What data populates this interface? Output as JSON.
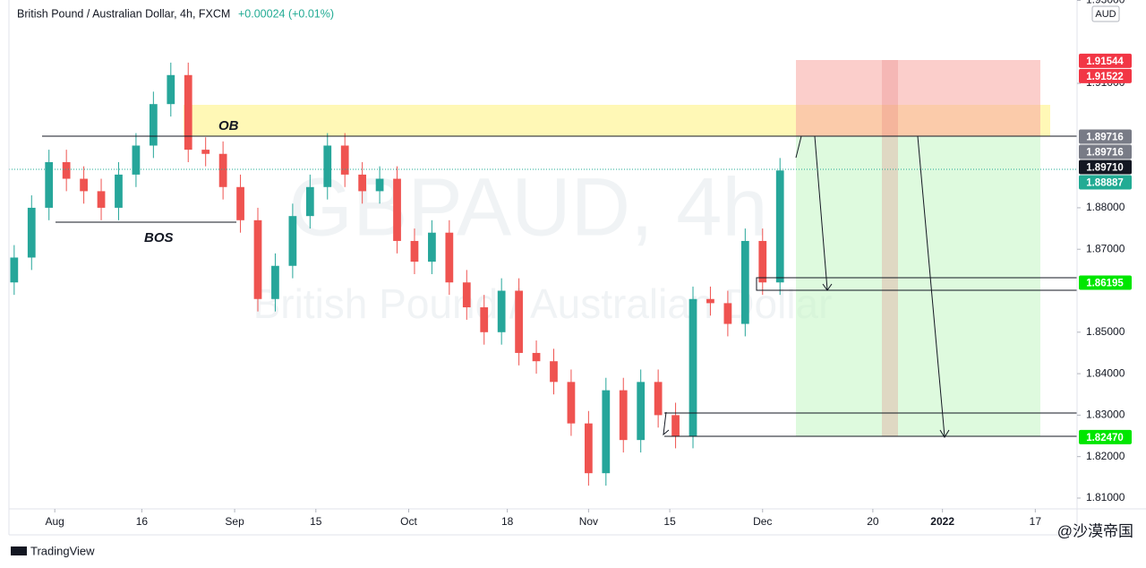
{
  "chart_data": {
    "type": "candlestick",
    "title": "British Pound / Australian Dollar, 4h, FXCM",
    "change": "+0.00024 (+0.01%)",
    "watermark": "GBPAUD, 4h",
    "watermark_subtitle": "British Pound / Australian Dollar",
    "currency": "AUD",
    "annotations": [
      "OB",
      "BOS"
    ],
    "branding": "TradingView",
    "credit": "@沙漠帝国",
    "up_color": "#26a69a",
    "down_color": "#ef5350",
    "x": [
      -7,
      -4,
      -1,
      2,
      5,
      8,
      11,
      14,
      17,
      20,
      23,
      26,
      29,
      32,
      35,
      38,
      41,
      44,
      47,
      50,
      53,
      56,
      59,
      62,
      65,
      68,
      71,
      74,
      77,
      80,
      83,
      86,
      89,
      92,
      95,
      98,
      101,
      104,
      107,
      110,
      113,
      116,
      119,
      122,
      125
    ],
    "open": [
      1.862,
      1.868,
      1.88,
      1.891,
      1.887,
      1.884,
      1.88,
      1.888,
      1.895,
      1.905,
      1.912,
      1.894,
      1.893,
      1.885,
      1.877,
      1.858,
      1.866,
      1.878,
      1.885,
      1.895,
      1.888,
      1.884,
      1.887,
      1.872,
      1.867,
      1.874,
      1.862,
      1.856,
      1.85,
      1.86,
      1.845,
      1.843,
      1.838,
      1.828,
      1.816,
      1.836,
      1.824,
      1.838,
      1.83,
      1.825,
      1.858,
      1.857,
      1.852,
      1.872,
      1.862
    ],
    "high": [
      1.871,
      1.883,
      1.894,
      1.894,
      1.89,
      1.887,
      1.891,
      1.898,
      1.908,
      1.915,
      1.915,
      1.897,
      1.896,
      1.888,
      1.88,
      1.869,
      1.881,
      1.888,
      1.898,
      1.898,
      1.891,
      1.89,
      1.89,
      1.875,
      1.877,
      1.877,
      1.865,
      1.859,
      1.863,
      1.863,
      1.848,
      1.846,
      1.841,
      1.831,
      1.839,
      1.839,
      1.841,
      1.841,
      1.833,
      1.861,
      1.861,
      1.86,
      1.875,
      1.875,
      1.892
    ],
    "low": [
      1.859,
      1.865,
      1.877,
      1.884,
      1.881,
      1.877,
      1.877,
      1.885,
      1.892,
      1.902,
      1.891,
      1.89,
      1.882,
      1.874,
      1.855,
      1.855,
      1.863,
      1.875,
      1.882,
      1.885,
      1.881,
      1.881,
      1.869,
      1.864,
      1.864,
      1.859,
      1.853,
      1.847,
      1.847,
      1.842,
      1.84,
      1.835,
      1.825,
      1.813,
      1.813,
      1.821,
      1.821,
      1.827,
      1.822,
      1.822,
      1.854,
      1.849,
      1.849,
      1.859,
      1.859
    ],
    "close": [
      1.868,
      1.88,
      1.891,
      1.887,
      1.884,
      1.88,
      1.888,
      1.895,
      1.905,
      1.912,
      1.894,
      1.893,
      1.885,
      1.877,
      1.858,
      1.866,
      1.878,
      1.885,
      1.895,
      1.888,
      1.884,
      1.887,
      1.872,
      1.867,
      1.874,
      1.862,
      1.856,
      1.85,
      1.86,
      1.845,
      1.843,
      1.838,
      1.828,
      1.816,
      1.836,
      1.824,
      1.838,
      1.83,
      1.825,
      1.858,
      1.857,
      1.852,
      1.872,
      1.862,
      1.889
    ],
    "xlim": [
      -7.9,
      176.2
    ],
    "ylim": [
      1.8074,
      1.9301
    ],
    "xticks": [
      {
        "value": 0,
        "label": "Aug"
      },
      {
        "value": 15,
        "label": "16"
      },
      {
        "value": 31,
        "label": "Sep"
      },
      {
        "value": 45,
        "label": "15"
      },
      {
        "value": 61,
        "label": "Oct"
      },
      {
        "value": 78,
        "label": "18"
      },
      {
        "value": 92,
        "label": "Nov"
      },
      {
        "value": 106,
        "label": "15"
      },
      {
        "value": 122,
        "label": "Dec"
      },
      {
        "value": 141,
        "label": "20"
      },
      {
        "value": 153,
        "label": "2022"
      },
      {
        "value": 169,
        "label": "17"
      }
    ],
    "yticks": [
      {
        "value": 1.81,
        "label": "1.81000"
      },
      {
        "value": 1.82,
        "label": "1.82000"
      },
      {
        "value": 1.83,
        "label": "1.83000"
      },
      {
        "value": 1.84,
        "label": "1.84000"
      },
      {
        "value": 1.85,
        "label": "1.85000"
      },
      {
        "value": 1.87,
        "label": "1.87000"
      },
      {
        "value": 1.88,
        "label": "1.88000"
      },
      {
        "value": 1.91,
        "label": "1.91000"
      },
      {
        "value": 1.93,
        "label": "1.93000"
      }
    ],
    "price_labels": [
      {
        "value": 1.91544,
        "label": "1.91544",
        "color": "#f23645"
      },
      {
        "value": 1.91522,
        "label": "1.91522",
        "color": "#f23645"
      },
      {
        "value": 1.89716,
        "label": "1.89716",
        "color": "#787b86"
      },
      {
        "value": 1.89716,
        "label": "1.89716",
        "color": "#787b86"
      },
      {
        "value": 1.8971,
        "label": "1.89710",
        "color": "#131722"
      },
      {
        "value": 1.88887,
        "label": "1.88887",
        "color": "#22ab94"
      },
      {
        "value": 1.86195,
        "label": "1.86195",
        "color": "#00e600"
      },
      {
        "value": 1.8247,
        "label": "1.82470",
        "color": "#00e600"
      }
    ]
  }
}
